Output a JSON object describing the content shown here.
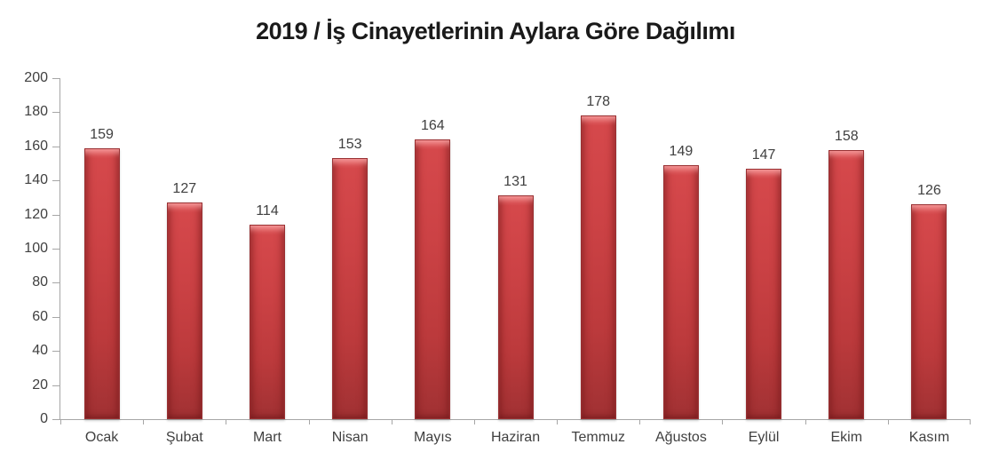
{
  "title": "2019 / İş Cinayetlerinin Aylara Göre Dağılımı",
  "colors": {
    "bar_face": "#C13B3D",
    "bar_edge_dark": "#9A3032",
    "bar_highlight": "#E2696B",
    "axis_line": "#A6A6A6",
    "label_text": "#404040",
    "title_text": "#1A1A1A",
    "background": "#FFFFFF"
  },
  "chart_data": {
    "type": "bar",
    "title": "2019 / İş Cinayetlerinin Aylara Göre Dağılımı",
    "categories": [
      "Ocak",
      "Şubat",
      "Mart",
      "Nisan",
      "Mayıs",
      "Haziran",
      "Temmuz",
      "Ağustos",
      "Eylül",
      "Ekim",
      "Kasım"
    ],
    "values": [
      159,
      127,
      114,
      153,
      164,
      131,
      178,
      149,
      147,
      158,
      126
    ],
    "xlabel": "",
    "ylabel": "",
    "ylim": [
      0,
      200
    ],
    "ytick_step": 20,
    "yticks": [
      0,
      20,
      40,
      60,
      80,
      100,
      120,
      140,
      160,
      180,
      200
    ],
    "grid": false,
    "legend": false,
    "data_labels": true
  }
}
